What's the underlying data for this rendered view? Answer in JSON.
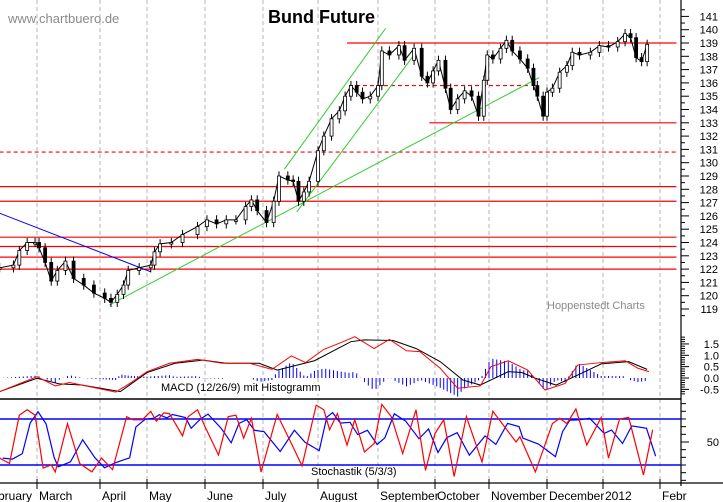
{
  "title": "Bund Future",
  "watermark": "www.chartbuero.de",
  "source": "Hoppenstedt Charts",
  "colors": {
    "resistance": "#ff0000",
    "trend_up": "#33cc33",
    "trend_down": "#0000ff",
    "macd": "#ff0000",
    "signal": "#000000",
    "histogram": "#0000ff",
    "stoch_k": "#ff0000",
    "stoch_d": "#0000ff",
    "grid": "#b4b4b4"
  },
  "x_axis": {
    "months": [
      {
        "label": "February",
        "date": "2011-02-01"
      },
      {
        "label": "March",
        "date": "2011-03-01"
      },
      {
        "label": "April",
        "date": "2011-04-01"
      },
      {
        "label": "May",
        "date": "2011-05-01"
      },
      {
        "label": "June",
        "date": "2011-06-01"
      },
      {
        "label": "July",
        "date": "2011-07-01"
      },
      {
        "label": "August",
        "date": "2011-08-01"
      },
      {
        "label": "September",
        "date": "2011-09-01"
      },
      {
        "label": "October",
        "date": "2011-10-01"
      },
      {
        "label": "November",
        "date": "2011-11-01"
      },
      {
        "label": "December",
        "date": "2011-12-01"
      },
      {
        "label": "2012",
        "date": "2012-01-01"
      },
      {
        "label": "Febr",
        "date": "2012-02-01"
      }
    ]
  },
  "chart_data": [
    {
      "type": "line",
      "title": "Bund Future",
      "ylim": [
        119,
        141
      ],
      "yticks": [
        141,
        140,
        139,
        138,
        137,
        136,
        135,
        134,
        133,
        132,
        131,
        130,
        129,
        128,
        127,
        126,
        125,
        124,
        123,
        122,
        121,
        120,
        119
      ],
      "grid": "vertical dashed at month starts",
      "series": [
        {
          "points": [
            [
              "2011-02-10",
              122.1
            ],
            [
              "2011-02-17",
              122.3
            ],
            [
              "2011-02-20",
              123.4
            ],
            [
              "2011-02-24",
              124.0
            ],
            [
              "2011-02-28",
              124.0
            ],
            [
              "2011-03-02",
              123.6
            ],
            [
              "2011-03-05",
              122.5
            ],
            [
              "2011-03-08",
              121.1
            ],
            [
              "2011-03-11",
              121.9
            ],
            [
              "2011-03-15",
              122.6
            ],
            [
              "2011-03-19",
              121.3
            ],
            [
              "2011-03-24",
              120.8
            ],
            [
              "2011-03-29",
              120.2
            ],
            [
              "2011-04-04",
              119.8
            ],
            [
              "2011-04-08",
              119.5
            ],
            [
              "2011-04-12",
              120.1
            ],
            [
              "2011-04-16",
              120.8
            ],
            [
              "2011-04-19",
              121.9
            ],
            [
              "2011-04-26",
              122.1
            ],
            [
              "2011-05-03",
              122.3
            ],
            [
              "2011-05-05",
              123.3
            ],
            [
              "2011-05-08",
              123.9
            ],
            [
              "2011-05-14",
              124.0
            ],
            [
              "2011-05-20",
              124.6
            ],
            [
              "2011-05-28",
              125.2
            ],
            [
              "2011-06-02",
              125.7
            ],
            [
              "2011-06-07",
              125.4
            ],
            [
              "2011-06-12",
              125.7
            ],
            [
              "2011-06-17",
              125.7
            ],
            [
              "2011-06-22",
              126.7
            ],
            [
              "2011-06-25",
              127.2
            ],
            [
              "2011-06-28",
              126.4
            ],
            [
              "2011-07-03",
              125.5
            ],
            [
              "2011-07-07",
              127.1
            ],
            [
              "2011-07-10",
              129.0
            ],
            [
              "2011-07-15",
              128.7
            ],
            [
              "2011-07-18",
              128.6
            ],
            [
              "2011-07-21",
              127.1
            ],
            [
              "2011-07-24",
              127.8
            ],
            [
              "2011-07-27",
              128.6
            ],
            [
              "2011-08-01",
              130.9
            ],
            [
              "2011-08-04",
              132.0
            ],
            [
              "2011-08-08",
              133.3
            ],
            [
              "2011-08-12",
              133.9
            ],
            [
              "2011-08-15",
              135.0
            ],
            [
              "2011-08-18",
              135.8
            ],
            [
              "2011-08-21",
              135.3
            ],
            [
              "2011-08-24",
              134.8
            ],
            [
              "2011-08-28",
              135.0
            ],
            [
              "2011-09-01",
              135.8
            ],
            [
              "2011-09-03",
              138.4
            ],
            [
              "2011-09-07",
              138.1
            ],
            [
              "2011-09-12",
              138.8
            ],
            [
              "2011-09-15",
              137.7
            ],
            [
              "2011-09-20",
              138.6
            ],
            [
              "2011-09-24",
              136.5
            ],
            [
              "2011-09-27",
              136.0
            ],
            [
              "2011-09-30",
              136.9
            ],
            [
              "2011-10-03",
              137.7
            ],
            [
              "2011-10-07",
              135.6
            ],
            [
              "2011-10-10",
              134.0
            ],
            [
              "2011-10-14",
              134.8
            ],
            [
              "2011-10-18",
              135.4
            ],
            [
              "2011-10-22",
              135.0
            ],
            [
              "2011-10-26",
              133.5
            ],
            [
              "2011-10-29",
              136.2
            ],
            [
              "2011-10-31",
              138.1
            ],
            [
              "2011-11-03",
              137.8
            ],
            [
              "2011-11-07",
              138.6
            ],
            [
              "2011-11-10",
              139.2
            ],
            [
              "2011-11-13",
              138.4
            ],
            [
              "2011-11-17",
              137.8
            ],
            [
              "2011-11-21",
              137.1
            ],
            [
              "2011-11-24",
              135.8
            ],
            [
              "2011-11-26",
              135.0
            ],
            [
              "2011-11-29",
              133.5
            ],
            [
              "2011-12-01",
              135.3
            ],
            [
              "2011-12-04",
              135.6
            ],
            [
              "2011-12-08",
              136.8
            ],
            [
              "2011-12-12",
              137.3
            ],
            [
              "2011-12-15",
              138.3
            ],
            [
              "2011-12-19",
              138.1
            ],
            [
              "2011-12-25",
              138.3
            ],
            [
              "2011-12-30",
              138.8
            ],
            [
              "2012-01-04",
              138.7
            ],
            [
              "2012-01-09",
              139.1
            ],
            [
              "2012-01-13",
              139.7
            ],
            [
              "2012-01-16",
              139.4
            ],
            [
              "2012-01-19",
              137.9
            ],
            [
              "2012-01-22",
              137.6
            ],
            [
              "2012-01-25",
              138.9
            ]
          ]
        }
      ],
      "horizontal_lines": [
        {
          "level": 139.0,
          "from": "2011-08-16",
          "to": "2012-02-10",
          "style": "solid"
        },
        {
          "level": 133.0,
          "from": "2011-09-28",
          "to": "2012-02-10",
          "style": "solid"
        },
        {
          "level": 135.8,
          "from": "2011-08-17",
          "to": "2011-11-22",
          "style": "dashed"
        },
        {
          "level": 130.8,
          "from": "2011-02-10",
          "to": "2012-02-10",
          "style": "dashed"
        },
        {
          "level": 128.2,
          "from": "2011-02-10",
          "to": "2012-02-10",
          "style": "solid"
        },
        {
          "level": 127.1,
          "from": "2011-02-10",
          "to": "2012-02-10",
          "style": "solid"
        },
        {
          "level": 124.4,
          "from": "2011-02-10",
          "to": "2012-02-10",
          "style": "solid"
        },
        {
          "level": 123.7,
          "from": "2011-02-10",
          "to": "2012-02-10",
          "style": "solid"
        },
        {
          "level": 122.9,
          "from": "2011-02-10",
          "to": "2012-02-10",
          "style": "solid"
        },
        {
          "level": 122.0,
          "from": "2011-02-10",
          "to": "2012-02-10",
          "style": "solid"
        }
      ],
      "trendlines": [
        {
          "color": "blue",
          "from": [
            "2011-02-10",
            126.2
          ],
          "to": [
            "2011-05-03",
            121.8
          ]
        },
        {
          "color": "green",
          "from": [
            "2011-04-07",
            119.3
          ],
          "to": [
            "2011-11-27",
            136.4
          ]
        },
        {
          "color": "green",
          "from": [
            "2011-07-13",
            129.5
          ],
          "to": [
            "2011-09-05",
            140.1
          ]
        },
        {
          "color": "green",
          "from": [
            "2011-07-20",
            126.3
          ],
          "to": [
            "2011-09-21",
            138.3
          ]
        }
      ]
    },
    {
      "type": "line",
      "label": "MACD (12/26/9) mit Histogramm",
      "ylim": [
        -0.8,
        1.9
      ],
      "yticks": [
        "1.5",
        "1.0",
        "0.5",
        "0.0",
        "-0.5"
      ],
      "macd": [
        [
          "2011-02-10",
          -0.6
        ],
        [
          "2011-03-01",
          0.06
        ],
        [
          "2011-03-10",
          -0.35
        ],
        [
          "2011-03-17",
          -0.2
        ],
        [
          "2011-03-28",
          -0.4
        ],
        [
          "2011-04-11",
          -0.62
        ],
        [
          "2011-04-20",
          -0.24
        ],
        [
          "2011-05-01",
          0.28
        ],
        [
          "2011-05-13",
          0.65
        ],
        [
          "2011-05-28",
          0.82
        ],
        [
          "2011-06-10",
          0.65
        ],
        [
          "2011-06-24",
          0.65
        ],
        [
          "2011-07-06",
          0.38
        ],
        [
          "2011-07-17",
          0.97
        ],
        [
          "2011-07-25",
          0.68
        ],
        [
          "2011-08-04",
          1.26
        ],
        [
          "2011-08-14",
          1.6
        ],
        [
          "2011-08-20",
          1.82
        ],
        [
          "2011-08-30",
          1.3
        ],
        [
          "2011-09-07",
          1.7
        ],
        [
          "2011-09-16",
          1.2
        ],
        [
          "2011-09-23",
          1.16
        ],
        [
          "2011-10-04",
          0.43
        ],
        [
          "2011-10-14",
          -0.45
        ],
        [
          "2011-10-27",
          -0.35
        ],
        [
          "2011-11-02",
          0.5
        ],
        [
          "2011-11-11",
          0.76
        ],
        [
          "2011-11-21",
          0.35
        ],
        [
          "2011-11-30",
          -0.53
        ],
        [
          "2011-12-11",
          -0.24
        ],
        [
          "2011-12-18",
          0.57
        ],
        [
          "2011-12-31",
          0.68
        ],
        [
          "2012-01-13",
          0.76
        ],
        [
          "2012-01-20",
          0.43
        ],
        [
          "2012-01-26",
          0.28
        ]
      ],
      "signal": [
        [
          "2011-02-10",
          -0.6
        ],
        [
          "2011-03-01",
          -0.01
        ],
        [
          "2011-03-12",
          -0.26
        ],
        [
          "2011-03-23",
          -0.31
        ],
        [
          "2011-04-14",
          -0.6
        ],
        [
          "2011-05-01",
          0.24
        ],
        [
          "2011-05-16",
          0.65
        ],
        [
          "2011-05-31",
          0.79
        ],
        [
          "2011-06-12",
          0.65
        ],
        [
          "2011-06-29",
          0.65
        ],
        [
          "2011-07-09",
          0.35
        ],
        [
          "2011-07-30",
          0.76
        ],
        [
          "2011-08-18",
          1.6
        ],
        [
          "2011-08-25",
          1.68
        ],
        [
          "2011-09-09",
          1.65
        ],
        [
          "2011-09-21",
          1.3
        ],
        [
          "2011-10-04",
          0.72
        ],
        [
          "2011-10-17",
          -0.09
        ],
        [
          "2011-10-27",
          -0.31
        ],
        [
          "2011-11-11",
          0.28
        ],
        [
          "2011-11-18",
          0.24
        ],
        [
          "2011-11-25",
          -0.01
        ],
        [
          "2011-12-06",
          -0.31
        ],
        [
          "2011-12-18",
          0.13
        ],
        [
          "2011-12-31",
          0.62
        ],
        [
          "2012-01-15",
          0.72
        ],
        [
          "2012-01-25",
          0.38
        ]
      ]
    },
    {
      "type": "line",
      "label": "Stochastik (5/3/3)",
      "ylim": [
        0,
        100
      ],
      "yticks": [
        "50"
      ],
      "bands": [
        20,
        80
      ],
      "k": [
        [
          "2011-02-10",
          29
        ],
        [
          "2011-02-15",
          22
        ],
        [
          "2011-02-20",
          85
        ],
        [
          "2011-02-24",
          92
        ],
        [
          "2011-02-28",
          85
        ],
        [
          "2011-03-04",
          16
        ],
        [
          "2011-03-08",
          20
        ],
        [
          "2011-03-10",
          11
        ],
        [
          "2011-03-16",
          74
        ],
        [
          "2011-03-22",
          22
        ],
        [
          "2011-03-28",
          11
        ],
        [
          "2011-04-02",
          29
        ],
        [
          "2011-04-09",
          14
        ],
        [
          "2011-04-18",
          83
        ],
        [
          "2011-04-22",
          79
        ],
        [
          "2011-04-28",
          79
        ],
        [
          "2011-05-03",
          90
        ],
        [
          "2011-05-06",
          77
        ],
        [
          "2011-05-10",
          88
        ],
        [
          "2011-05-13",
          87
        ],
        [
          "2011-05-20",
          58
        ],
        [
          "2011-05-23",
          83
        ],
        [
          "2011-05-28",
          92
        ],
        [
          "2011-06-01",
          70
        ],
        [
          "2011-06-08",
          33
        ],
        [
          "2011-06-13",
          83
        ],
        [
          "2011-06-17",
          85
        ],
        [
          "2011-06-21",
          55
        ],
        [
          "2011-06-25",
          81
        ],
        [
          "2011-06-30",
          11
        ],
        [
          "2011-07-09",
          86
        ],
        [
          "2011-07-17",
          48
        ],
        [
          "2011-07-23",
          19
        ],
        [
          "2011-07-31",
          98
        ],
        [
          "2011-08-04",
          92
        ],
        [
          "2011-08-07",
          66
        ],
        [
          "2011-08-11",
          87
        ],
        [
          "2011-08-16",
          46
        ],
        [
          "2011-08-20",
          79
        ],
        [
          "2011-08-25",
          37
        ],
        [
          "2011-08-30",
          48
        ],
        [
          "2011-09-03",
          99
        ],
        [
          "2011-09-08",
          83
        ],
        [
          "2011-09-14",
          35
        ],
        [
          "2011-09-21",
          92
        ],
        [
          "2011-09-26",
          13
        ],
        [
          "2011-10-01",
          61
        ],
        [
          "2011-10-06",
          79
        ],
        [
          "2011-10-12",
          5
        ],
        [
          "2011-10-19",
          83
        ],
        [
          "2011-10-28",
          24
        ],
        [
          "2011-11-03",
          90
        ],
        [
          "2011-11-09",
          70
        ],
        [
          "2011-11-15",
          50
        ],
        [
          "2011-11-17",
          57
        ],
        [
          "2011-11-25",
          11
        ],
        [
          "2011-12-04",
          74
        ],
        [
          "2011-12-08",
          81
        ],
        [
          "2011-12-12",
          74
        ],
        [
          "2011-12-17",
          93
        ],
        [
          "2011-12-23",
          46
        ],
        [
          "2011-12-31",
          82
        ],
        [
          "2012-01-04",
          29
        ],
        [
          "2012-01-10",
          80
        ],
        [
          "2012-01-15",
          82
        ],
        [
          "2012-01-23",
          7
        ],
        [
          "2012-01-28",
          66
        ]
      ]
    }
  ]
}
